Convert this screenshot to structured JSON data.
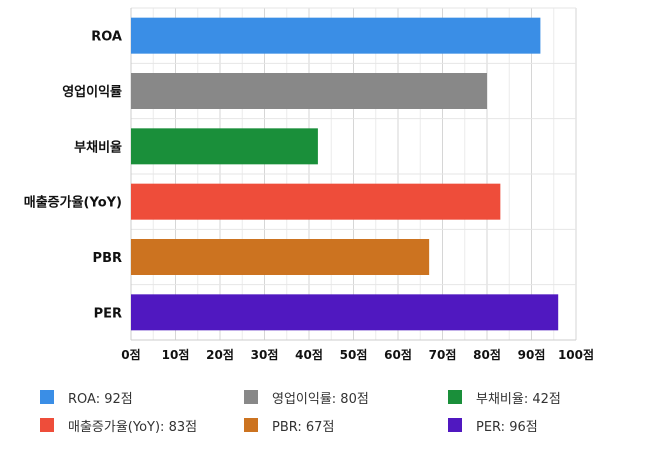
{
  "chart_data": {
    "type": "bar",
    "orientation": "horizontal",
    "categories": [
      "ROA",
      "영업이익률",
      "부채비율",
      "매출증가율(YoY)",
      "PBR",
      "PER"
    ],
    "values": [
      92,
      80,
      42,
      83,
      67,
      96
    ],
    "colors": [
      "#3a8ee6",
      "#888888",
      "#1a8f3a",
      "#ee4d3a",
      "#cc7320",
      "#5018c0"
    ],
    "xlim": [
      0,
      100
    ],
    "xticks": [
      0,
      10,
      20,
      30,
      40,
      50,
      60,
      70,
      80,
      90,
      100
    ],
    "tick_suffix": "점",
    "grid": true,
    "legend_position": "bottom",
    "legend": [
      {
        "label": "ROA: 92점",
        "color": "#3a8ee6"
      },
      {
        "label": "영업이익률: 80점",
        "color": "#888888"
      },
      {
        "label": "부채비율: 42점",
        "color": "#1a8f3a"
      },
      {
        "label": "매출증가율(YoY): 83점",
        "color": "#ee4d3a"
      },
      {
        "label": "PBR: 67점",
        "color": "#cc7320"
      },
      {
        "label": "PER: 96점",
        "color": "#5018c0"
      }
    ]
  }
}
